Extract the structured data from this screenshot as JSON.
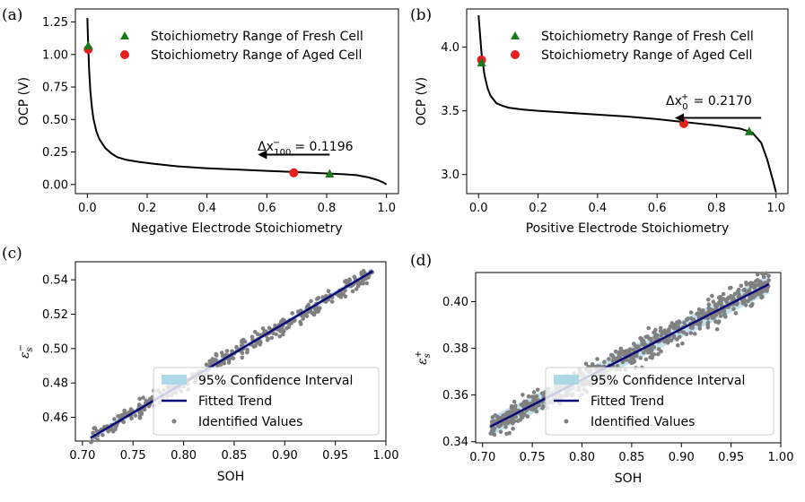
{
  "figure": {
    "panels": [
      "(a)",
      "(b)",
      "(c)",
      "(d)"
    ]
  },
  "colors": {
    "curve": "#000000",
    "fresh_marker": "#1a7a1a",
    "aged_marker": "#e3201b",
    "fit_line": "#0a0a7a",
    "ci_band": "#add8e6",
    "points": "#808080"
  },
  "chart_data": [
    {
      "id": "a",
      "type": "line",
      "panel_label": "(a)",
      "xlabel": "Negative Electrode Stoichiometry",
      "ylabel": "OCP (V)",
      "xlim": [
        -0.04,
        1.04
      ],
      "ylim": [
        -0.07,
        1.35
      ],
      "xticks": [
        "0.0",
        "0.2",
        "0.4",
        "0.6",
        "0.8",
        "1.0"
      ],
      "xtick_values": [
        0,
        0.2,
        0.4,
        0.6,
        0.8,
        1.0
      ],
      "yticks": [
        "0.00",
        "0.25",
        "0.50",
        "0.75",
        "1.00",
        "1.25"
      ],
      "ytick_values": [
        0,
        0.25,
        0.5,
        0.75,
        1.0,
        1.25
      ],
      "curve": {
        "x": [
          0.0,
          0.003,
          0.006,
          0.01,
          0.015,
          0.02,
          0.03,
          0.04,
          0.06,
          0.08,
          0.1,
          0.13,
          0.17,
          0.22,
          0.3,
          0.4,
          0.5,
          0.6,
          0.7,
          0.8,
          0.85,
          0.9,
          0.94,
          0.97,
          0.99,
          1.0
        ],
        "y": [
          1.28,
          1.06,
          0.88,
          0.72,
          0.6,
          0.51,
          0.41,
          0.35,
          0.28,
          0.24,
          0.21,
          0.19,
          0.175,
          0.16,
          0.14,
          0.125,
          0.115,
          0.105,
          0.095,
          0.085,
          0.08,
          0.072,
          0.055,
          0.035,
          0.015,
          0.0
        ]
      },
      "markers": [
        {
          "series": "Stoichiometry Range of Fresh Cell",
          "x": [
            0.003,
            0.81
          ],
          "y": [
            1.07,
            0.085
          ]
        },
        {
          "series": "Stoichiometry Range of Aged Cell",
          "x": [
            0.003,
            0.69
          ],
          "y": [
            1.04,
            0.09
          ]
        }
      ],
      "legend": [
        "Stoichiometry Range of Fresh Cell",
        "Stoichiometry Range of Aged Cell"
      ],
      "legend_position": "top-right",
      "annotation": {
        "prefix": "Δx",
        "subscript": "100",
        "superscript": "−",
        "value": "= 0.1196",
        "arrow_from": [
          0.81,
          0.23
        ],
        "arrow_to": [
          0.57,
          0.23
        ]
      }
    },
    {
      "id": "b",
      "type": "line",
      "panel_label": "(b)",
      "xlabel": "Positive Electrode Stoichiometry",
      "ylabel": "OCP (V)",
      "xlim": [
        -0.04,
        1.04
      ],
      "ylim": [
        2.85,
        4.3
      ],
      "xticks": [
        "0.0",
        "0.2",
        "0.4",
        "0.6",
        "0.8",
        "1.0"
      ],
      "xtick_values": [
        0,
        0.2,
        0.4,
        0.6,
        0.8,
        1.0
      ],
      "yticks": [
        "3.0",
        "3.5",
        "4.0"
      ],
      "ytick_values": [
        3.0,
        3.5,
        4.0
      ],
      "curve": {
        "x": [
          0.0,
          0.005,
          0.01,
          0.02,
          0.03,
          0.04,
          0.06,
          0.08,
          0.1,
          0.15,
          0.2,
          0.3,
          0.4,
          0.5,
          0.6,
          0.7,
          0.8,
          0.88,
          0.92,
          0.95,
          0.97,
          0.99,
          1.0
        ],
        "y": [
          4.25,
          4.1,
          3.95,
          3.78,
          3.68,
          3.62,
          3.56,
          3.54,
          3.525,
          3.51,
          3.5,
          3.485,
          3.47,
          3.455,
          3.435,
          3.41,
          3.385,
          3.36,
          3.33,
          3.25,
          3.12,
          2.95,
          2.86
        ]
      },
      "markers": [
        {
          "series": "Stoichiometry Range of Fresh Cell",
          "x": [
            0.01,
            0.91
          ],
          "y": [
            3.88,
            3.34
          ]
        },
        {
          "series": "Stoichiometry Range of Aged Cell",
          "x": [
            0.01,
            0.69
          ],
          "y": [
            3.9,
            3.4
          ]
        }
      ],
      "legend": [
        "Stoichiometry Range of Fresh Cell",
        "Stoichiometry Range of Aged Cell"
      ],
      "legend_position": "top-right",
      "annotation": {
        "prefix": "Δx",
        "subscript": "0",
        "superscript": "+",
        "value": "= 0.2170",
        "arrow_from": [
          0.95,
          3.445
        ],
        "arrow_to": [
          0.66,
          3.445
        ]
      }
    },
    {
      "id": "c",
      "type": "scatter",
      "panel_label": "(c)",
      "xlabel": "SOH",
      "ylabel": "ε",
      "ylabel_sub": "s",
      "ylabel_sup": "−",
      "xlim": [
        0.693,
        1.0
      ],
      "ylim": [
        0.4462,
        0.5505
      ],
      "xticks": [
        "0.70",
        "0.75",
        "0.80",
        "0.85",
        "0.90",
        "0.95",
        "1.00"
      ],
      "xtick_values": [
        0.7,
        0.75,
        0.8,
        0.85,
        0.9,
        0.95,
        1.0
      ],
      "yticks": [
        "0.46",
        "0.48",
        "0.50",
        "0.52",
        "0.54"
      ],
      "ytick_values": [
        0.46,
        0.48,
        0.5,
        0.52,
        0.54
      ],
      "fit": {
        "x_start": 0.708,
        "x_end": 0.987,
        "y_start": 0.448,
        "y_end": 0.545,
        "curvature": -0.006
      },
      "ci_halfwidth": 0.0015,
      "points": {
        "n": 380,
        "x_range": [
          0.708,
          0.988
        ],
        "spread": 0.0022,
        "dip_center": 0.92,
        "dip_depth": 0.003
      },
      "legend": [
        "95% Confidence Interval",
        "Fitted Trend",
        "Identified Values"
      ],
      "legend_position": "lower-right"
    },
    {
      "id": "d",
      "type": "scatter",
      "panel_label": "(d)",
      "xlabel": "SOH",
      "ylabel": "ε",
      "ylabel_sub": "s",
      "ylabel_sup": "+",
      "xlim": [
        0.693,
        1.0
      ],
      "ylim": [
        0.3395,
        0.4125
      ],
      "xticks": [
        "0.70",
        "0.75",
        "0.80",
        "0.85",
        "0.90",
        "0.95",
        "1.00"
      ],
      "xtick_values": [
        0.7,
        0.75,
        0.8,
        0.85,
        0.9,
        0.95,
        1.0
      ],
      "yticks": [
        "0.34",
        "0.36",
        "0.38",
        "0.40"
      ],
      "ytick_values": [
        0.34,
        0.36,
        0.38,
        0.4
      ],
      "fit": {
        "x_start": 0.708,
        "x_end": 0.988,
        "y_start": 0.3465,
        "y_end": 0.4075,
        "curvature": -0.0075
      },
      "ci_halfwidth": 0.0035,
      "points": {
        "n": 700,
        "x_range": [
          0.708,
          0.988
        ],
        "spread": 0.0028,
        "dip_center": 0.0,
        "dip_depth": 0.0
      },
      "legend": [
        "95% Confidence Interval",
        "Fitted Trend",
        "Identified Values"
      ],
      "legend_position": "lower-right"
    }
  ]
}
